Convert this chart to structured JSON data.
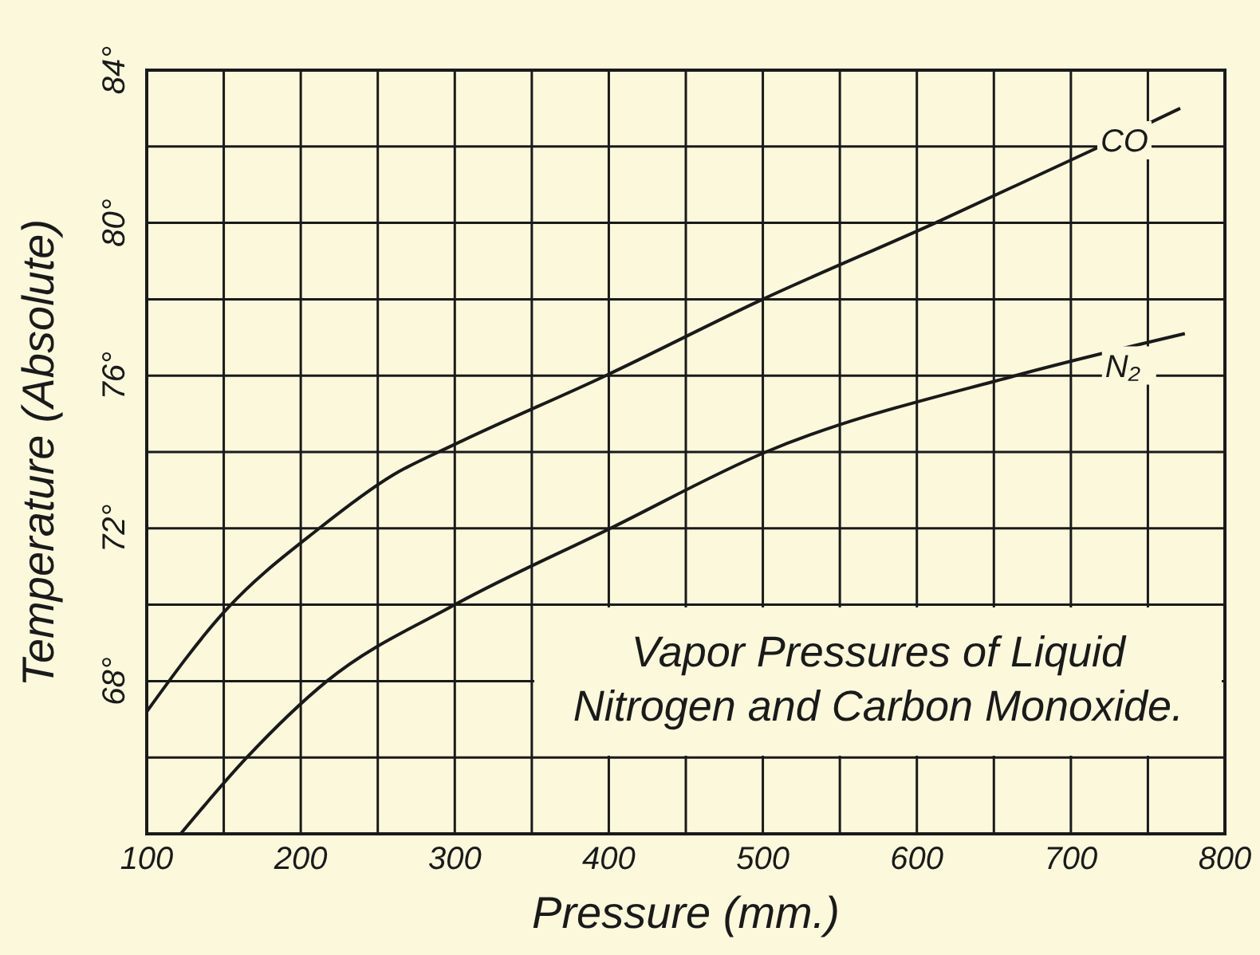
{
  "chart_data": {
    "type": "line",
    "title": "Vapor Pressures of Liquid Nitrogen and Carbon Monoxide.",
    "xlabel": "Pressure (mm.)",
    "ylabel": "Temperature (Absolute)",
    "series": [
      {
        "name": "CO",
        "color": "#1a1a1a",
        "x": [
          100,
          150,
          212,
          260,
          300,
          398,
          500,
          612,
          719,
          771
        ],
        "values": [
          67.2,
          69.8,
          72,
          73.4,
          74.2,
          76,
          78,
          80,
          82,
          83
        ]
      },
      {
        "name": "N₂",
        "color": "#1a1a1a",
        "x": [
          122,
          165,
          217,
          300,
          401,
          502,
          664,
          774
        ],
        "values": [
          64,
          66,
          68,
          70,
          72,
          74,
          76,
          77.1
        ]
      }
    ],
    "xlim": [
      100,
      800
    ],
    "ylim": [
      64,
      84
    ],
    "xticks": [
      100,
      {
        "value": 150,
        "label": null
      },
      200,
      {
        "value": 250,
        "label": null
      },
      300,
      {
        "value": 350,
        "label": null
      },
      400,
      {
        "value": 450,
        "label": null
      },
      500,
      {
        "value": 550,
        "label": null
      },
      600,
      {
        "value": 650,
        "label": null
      },
      700,
      {
        "value": 750,
        "label": null
      },
      800
    ],
    "yticks": [
      {
        "value": 64,
        "label": null
      },
      {
        "value": 66,
        "label": null
      },
      {
        "value": 68,
        "label": "68°"
      },
      {
        "value": 70,
        "label": null
      },
      {
        "value": 72,
        "label": "72°"
      },
      {
        "value": 74,
        "label": null
      },
      {
        "value": 76,
        "label": "76°"
      },
      {
        "value": 78,
        "label": null
      },
      {
        "value": 80,
        "label": "80°"
      },
      {
        "value": 82,
        "label": null
      },
      {
        "value": 84,
        "label": "84°"
      }
    ],
    "grid": true,
    "legend": false,
    "marker": "none",
    "line_style": "solid"
  }
}
